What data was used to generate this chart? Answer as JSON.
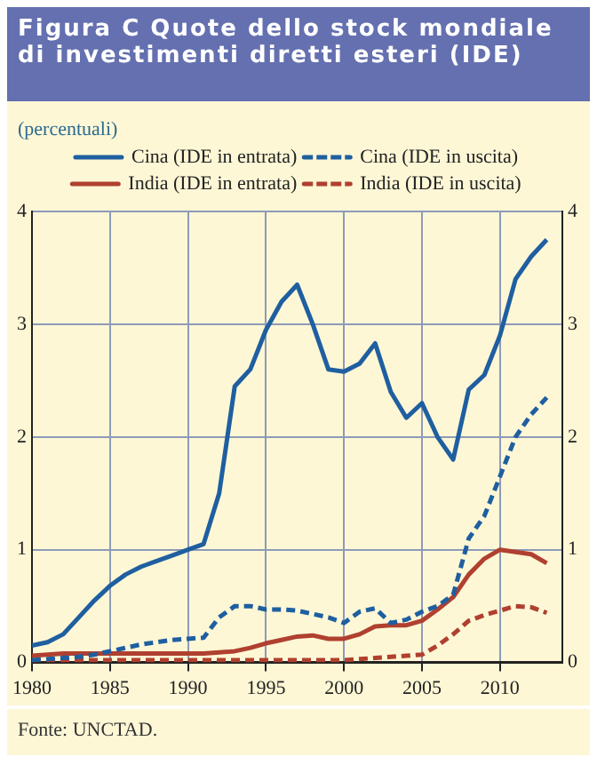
{
  "chart_data": {
    "type": "line",
    "title": "Figura C Quote dello stock mondiale di investimenti diretti esteri (IDE)",
    "subtitle": "(percentuali)",
    "annotations": [
      "Fonte: UNCTAD."
    ],
    "x": [
      1980,
      1981,
      1982,
      1983,
      1984,
      1985,
      1986,
      1987,
      1988,
      1989,
      1990,
      1991,
      1992,
      1993,
      1994,
      1995,
      1996,
      1997,
      1998,
      1999,
      2000,
      2001,
      2002,
      2003,
      2004,
      2005,
      2006,
      2007,
      2008,
      2009,
      2010,
      2011,
      2012,
      2013
    ],
    "series": [
      {
        "name": "Cina (IDE in entrata)",
        "color": "#1f5fa0",
        "line_style": "solid",
        "values": [
          0.15,
          0.18,
          0.25,
          0.4,
          0.55,
          0.68,
          0.78,
          0.85,
          0.9,
          0.95,
          1.0,
          1.05,
          1.5,
          2.45,
          2.6,
          2.95,
          3.2,
          3.35,
          3.0,
          2.6,
          2.58,
          2.65,
          2.83,
          2.4,
          2.17,
          2.3,
          2.0,
          1.8,
          2.42,
          2.55,
          2.9,
          3.4,
          3.6,
          3.75
        ]
      },
      {
        "name": "Cina (IDE in uscita)",
        "color": "#1f5fa0",
        "line_style": "dashed",
        "values": [
          0.02,
          0.03,
          0.04,
          0.05,
          0.07,
          0.1,
          0.13,
          0.16,
          0.18,
          0.2,
          0.21,
          0.22,
          0.4,
          0.5,
          0.5,
          0.47,
          0.47,
          0.46,
          0.43,
          0.4,
          0.35,
          0.45,
          0.48,
          0.35,
          0.38,
          0.45,
          0.5,
          0.6,
          1.1,
          1.3,
          1.65,
          2.0,
          2.2,
          2.35
        ]
      },
      {
        "name": "India (IDE in entrata)",
        "color": "#b0402f",
        "line_style": "solid",
        "values": [
          0.06,
          0.07,
          0.08,
          0.08,
          0.08,
          0.08,
          0.08,
          0.08,
          0.08,
          0.08,
          0.08,
          0.08,
          0.09,
          0.1,
          0.13,
          0.17,
          0.2,
          0.23,
          0.24,
          0.21,
          0.21,
          0.25,
          0.32,
          0.33,
          0.33,
          0.37,
          0.47,
          0.58,
          0.78,
          0.92,
          1.0,
          0.98,
          0.96,
          0.88
        ]
      },
      {
        "name": "India (IDE in uscita)",
        "color": "#b0402f",
        "line_style": "dashed",
        "values": [
          0.02,
          0.02,
          0.02,
          0.02,
          0.02,
          0.02,
          0.02,
          0.02,
          0.02,
          0.02,
          0.02,
          0.02,
          0.02,
          0.02,
          0.02,
          0.02,
          0.02,
          0.02,
          0.02,
          0.02,
          0.02,
          0.03,
          0.04,
          0.05,
          0.06,
          0.07,
          0.15,
          0.25,
          0.37,
          0.42,
          0.46,
          0.5,
          0.49,
          0.44
        ]
      }
    ],
    "xlim": [
      1980,
      2014
    ],
    "xticks": [
      1980,
      1985,
      1990,
      1995,
      2000,
      2005,
      2010
    ],
    "ylim": [
      0,
      4
    ],
    "yticks": [
      0,
      1,
      2,
      3,
      4
    ],
    "y2lim": [
      0,
      4
    ],
    "y2ticks": [
      0,
      1,
      2,
      3,
      4
    ],
    "grid": true,
    "legend": "top",
    "marker": "none"
  }
}
